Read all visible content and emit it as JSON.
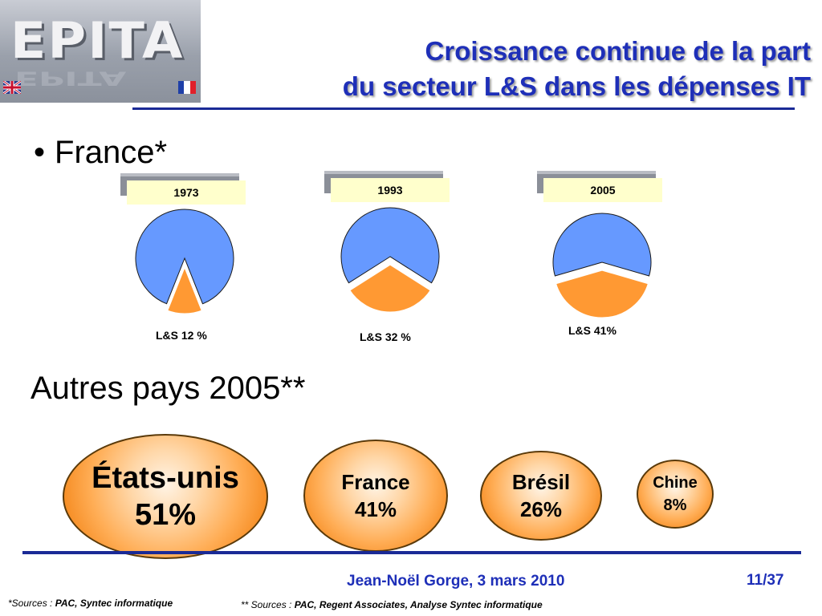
{
  "header": {
    "logo_text": "EPITA",
    "title_line1": "Croissance continue de la part",
    "title_line2": "du secteur L&S dans les dépenses IT"
  },
  "colors": {
    "title": "#1e2fb8",
    "rule": "#1a2a96",
    "pie_other": "#6699ff",
    "pie_ls": "#ff9933",
    "year_label_bg": "#ffffcc",
    "bubble": "#f58a1f"
  },
  "section1": {
    "bullet": "•",
    "label": "France*"
  },
  "section2": {
    "label": "Autres pays 2005**"
  },
  "chart_data": [
    {
      "type": "pie",
      "panels": [
        {
          "year": "1973",
          "ls_share": 12,
          "caption": "L&S 12 %"
        },
        {
          "year": "1993",
          "ls_share": 32,
          "caption": "L&S 32 %"
        },
        {
          "year": "2005",
          "ls_share": 41,
          "caption": "L&S 41%"
        }
      ],
      "series_colors": {
        "L&S": "#ff9933",
        "other": "#6699ff"
      }
    },
    {
      "type": "bubble",
      "categories": [
        "États-unis",
        "France",
        "Brésil",
        "Chine"
      ],
      "values": [
        51,
        41,
        26,
        8
      ],
      "value_labels": [
        "51%",
        "41%",
        "26%",
        "8%"
      ]
    }
  ],
  "footer": {
    "author": "Jean-Noël Gorge, 3 mars 2010",
    "page": "11/37",
    "source1_prefix": "*Sources : ",
    "source1_body": "PAC, Syntec informatique",
    "source2_prefix": "** Sources : ",
    "source2_body": "PAC, Regent Associates, Analyse Syntec informatique"
  }
}
